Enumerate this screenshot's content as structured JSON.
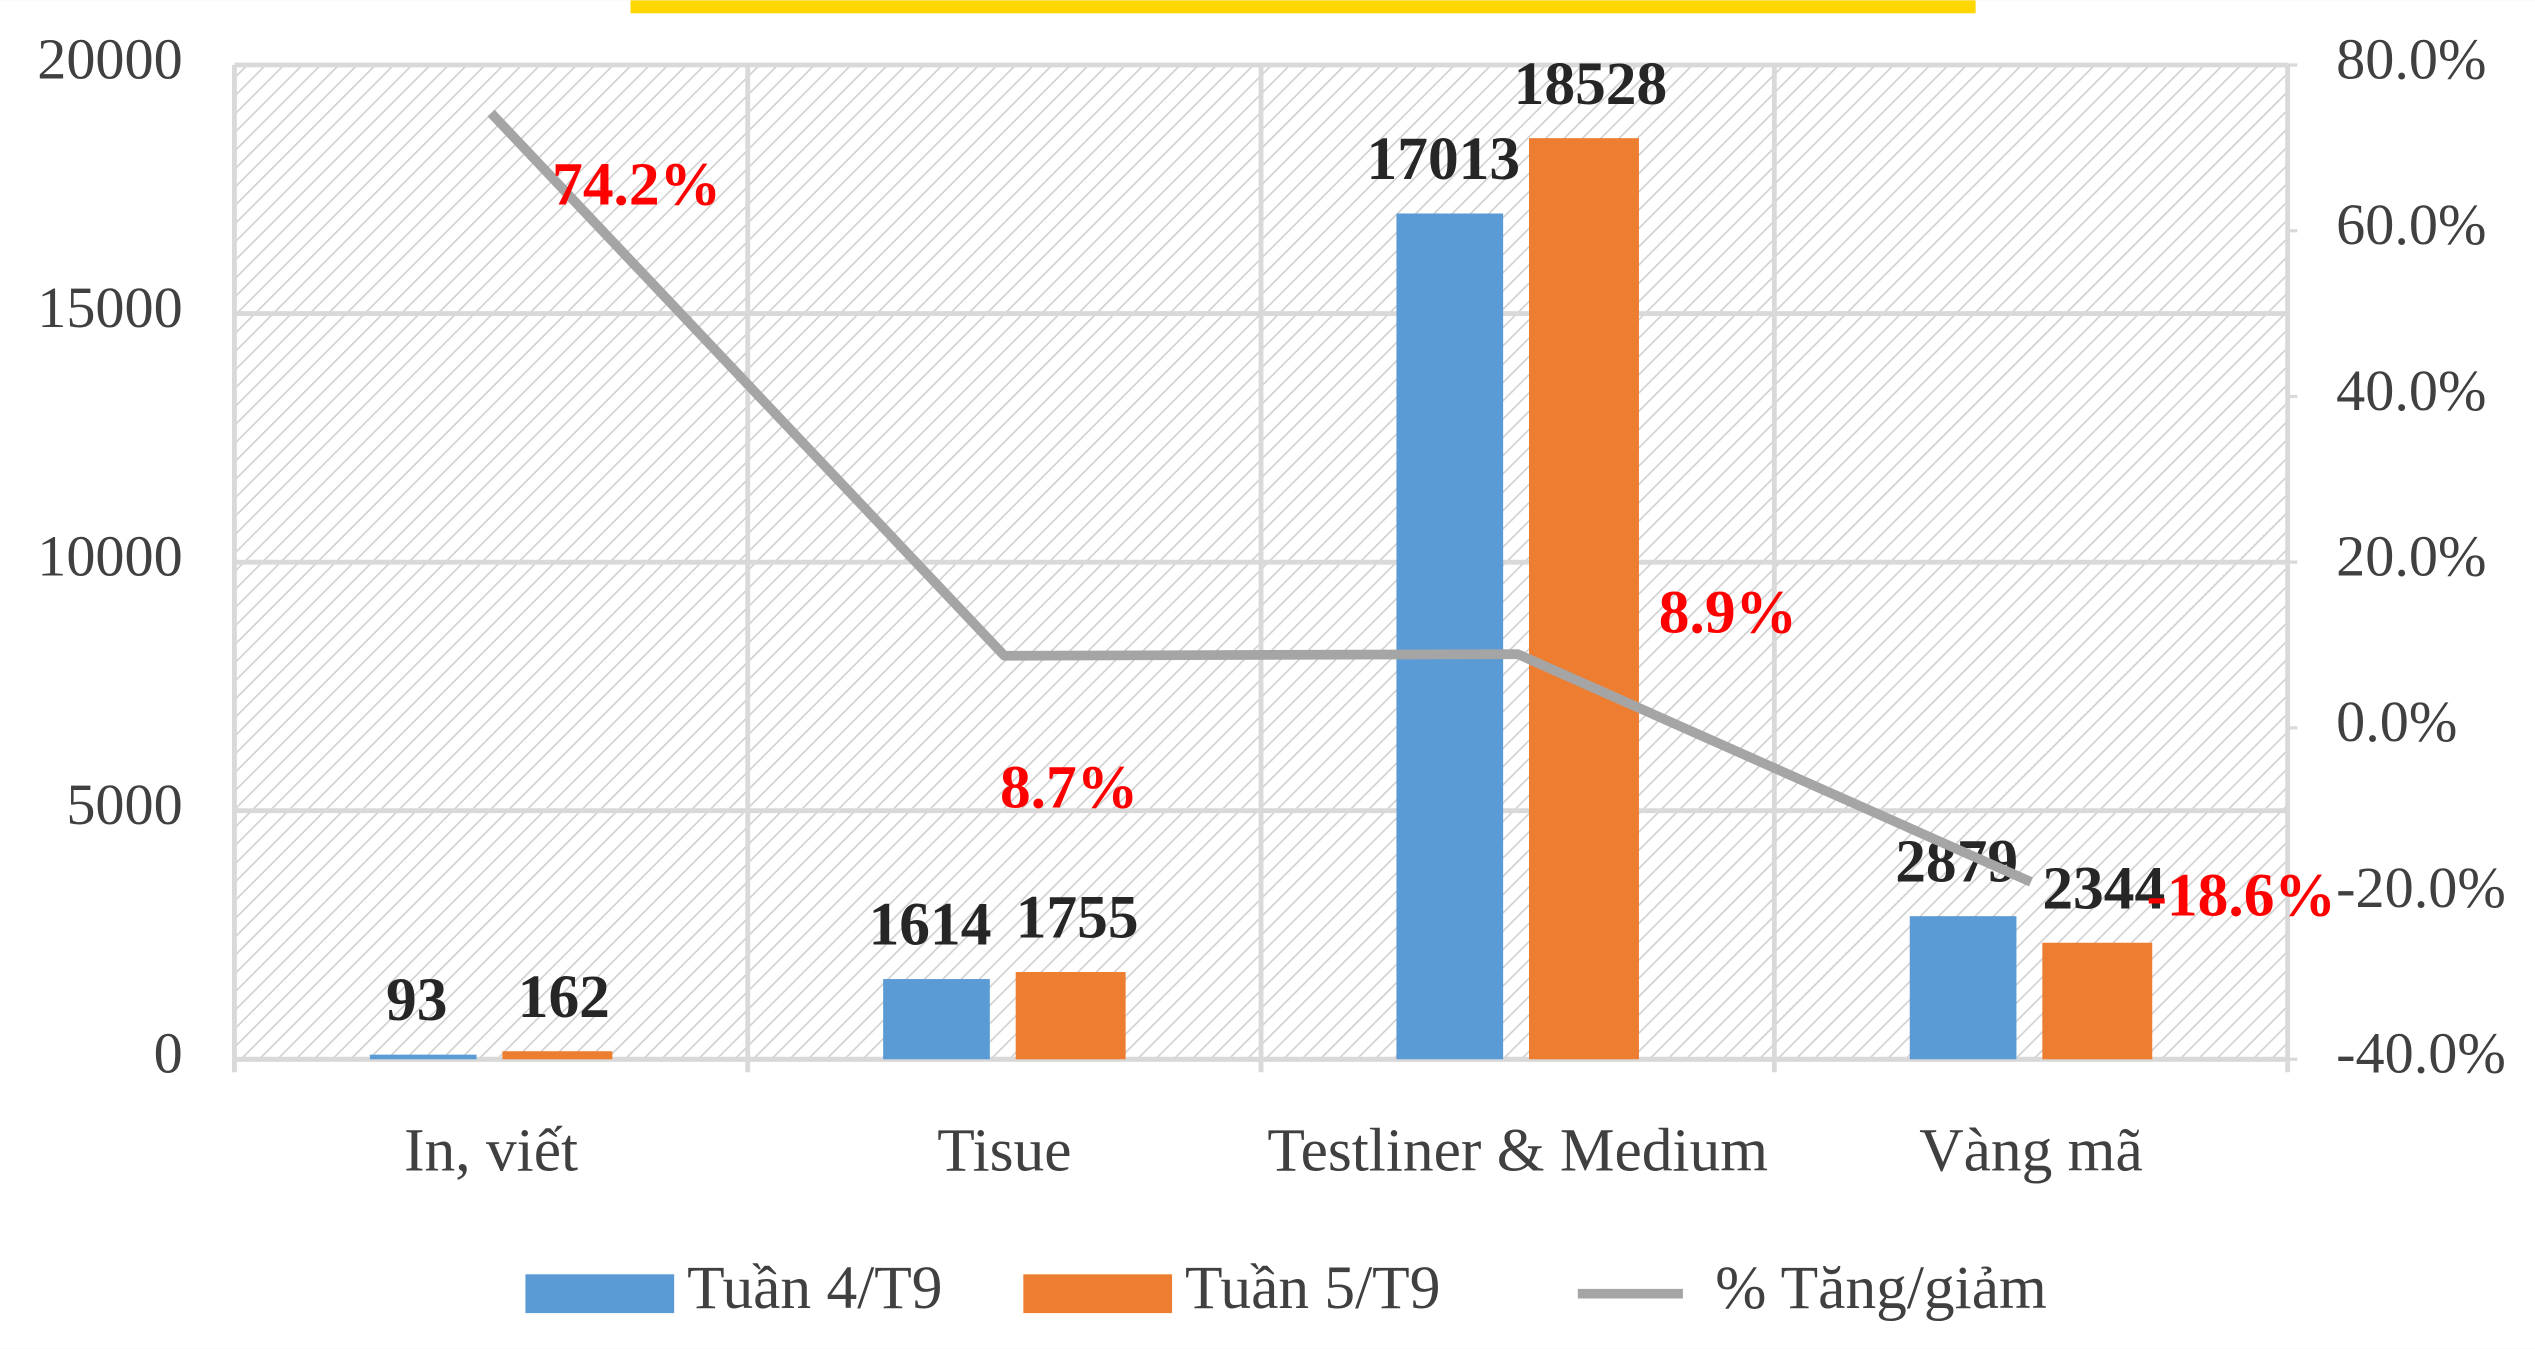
{
  "chart_data": {
    "type": "bar_line",
    "categories": [
      "In, viết",
      "Tisue",
      "Testliner & Medium",
      "Vàng mã"
    ],
    "series": [
      {
        "name": "Tuần 4/T9",
        "color": "#5b9bd5",
        "type": "bar",
        "values": [
          93,
          1614,
          17013,
          2879
        ]
      },
      {
        "name": "Tuần 5/T9",
        "color": "#ed7d31",
        "type": "bar",
        "values": [
          162,
          1755,
          18528,
          2344
        ]
      },
      {
        "name": "% Tăng/giảm",
        "color": "#a5a5a5",
        "type": "line",
        "axis": "y2",
        "values": [
          74.2,
          8.7,
          8.9,
          -18.6
        ],
        "value_labels": [
          "74.2%",
          "8.7%",
          "8.9%",
          "-18.6%"
        ]
      }
    ],
    "ylim": [
      0,
      20000
    ],
    "yticks": [
      0,
      5000,
      10000,
      15000,
      20000
    ],
    "y2lim": [
      -40,
      80
    ],
    "y2ticks": [
      {
        "value": -40,
        "label": "-40.0%"
      },
      {
        "value": -20,
        "label": "-20.0%"
      },
      {
        "value": 0,
        "label": "0.0%"
      },
      {
        "value": 20,
        "label": "20.0%"
      },
      {
        "value": 40,
        "label": "40.0%"
      },
      {
        "value": 60,
        "label": "60.0%"
      },
      {
        "value": 80,
        "label": "80.0%"
      }
    ],
    "grid": true,
    "legend": "bottom"
  }
}
